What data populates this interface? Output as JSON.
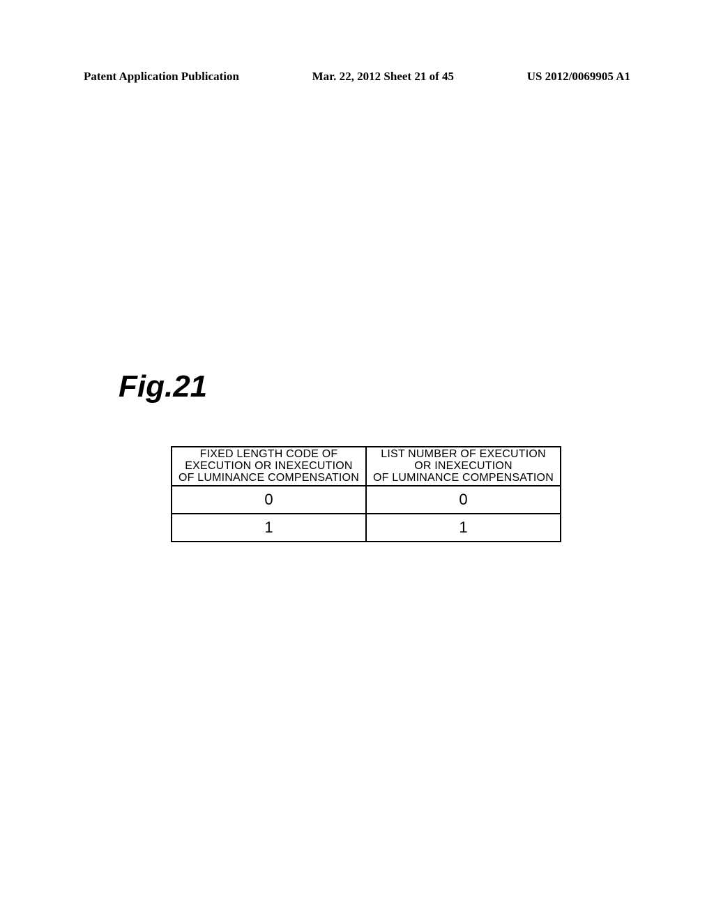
{
  "header": {
    "left": "Patent Application Publication",
    "center": "Mar. 22, 2012 Sheet 21 of 45",
    "right": "US 2012/0069905 A1"
  },
  "figure": {
    "label": "Fig.21"
  },
  "table": {
    "type": "table",
    "columns": [
      {
        "line1": "FIXED LENGTH CODE OF",
        "line2": "EXECUTION OR INEXECUTION",
        "line3": "OF LUMINANCE COMPENSATION"
      },
      {
        "line1": "LIST NUMBER OF EXECUTION",
        "line2": "OR INEXECUTION",
        "line3": "OF LUMINANCE COMPENSATION"
      }
    ],
    "rows": [
      [
        "0",
        "0"
      ],
      [
        "1",
        "1"
      ]
    ],
    "border_color": "#000000",
    "background_color": "#ffffff",
    "header_fontsize": 16,
    "cell_fontsize": 22
  }
}
